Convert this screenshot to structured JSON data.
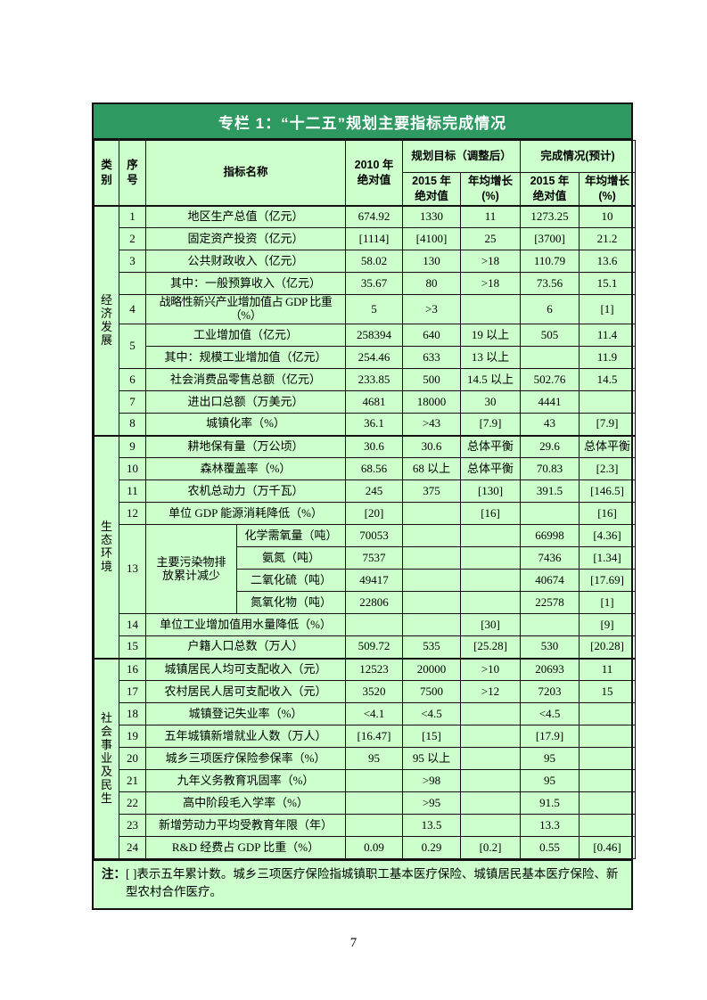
{
  "page": {
    "number": "7"
  },
  "colors": {
    "title_bar": "#2f9962",
    "body_bg": "#ccffcc",
    "border": "#111111"
  },
  "table": {
    "title": "专栏 1：“十二五”规划主要指标完成情况",
    "header": {
      "category": "类\n别",
      "index": "序\n号",
      "indicator": "指标名称",
      "base2010": "2010 年\n绝对值",
      "plan_group": "规划目标（调整后）",
      "done_group": "完成情况(预计)",
      "abs2015": "2015 年\n绝对值",
      "growth_pct": "年均增长\n(%)"
    },
    "rows": [
      {
        "cells": [
          {
            "t": "经\n济\n发\n展",
            "rs": 10,
            "c": "cat"
          },
          {
            "t": "1",
            "c": "num"
          },
          {
            "t": "地区生产总值（亿元）",
            "cs": 2,
            "c": "name"
          },
          {
            "t": "674.92"
          },
          {
            "t": "1330"
          },
          {
            "t": "11"
          },
          {
            "t": "1273.25"
          },
          {
            "t": "10"
          }
        ]
      },
      {
        "cells": [
          {
            "t": "2",
            "c": "num"
          },
          {
            "t": "固定资产投资（亿元）",
            "cs": 2,
            "c": "name"
          },
          {
            "t": "[1114]"
          },
          {
            "t": "[4100]"
          },
          {
            "t": "25"
          },
          {
            "t": "[3700]"
          },
          {
            "t": "21.2"
          }
        ]
      },
      {
        "cells": [
          {
            "t": "3",
            "c": "num"
          },
          {
            "t": "公共财政收入（亿元）",
            "cs": 2,
            "c": "name"
          },
          {
            "t": "58.02"
          },
          {
            "t": "130"
          },
          {
            "t": ">18"
          },
          {
            "t": "110.79"
          },
          {
            "t": "13.6"
          }
        ]
      },
      {
        "cells": [
          {
            "t": "",
            "c": "num"
          },
          {
            "t": "其中：一般预算收入（亿元）",
            "cs": 2,
            "c": "name"
          },
          {
            "t": "35.67"
          },
          {
            "t": "80"
          },
          {
            "t": ">18"
          },
          {
            "t": "73.56"
          },
          {
            "t": "15.1"
          }
        ]
      },
      {
        "cells": [
          {
            "t": "4",
            "c": "num"
          },
          {
            "t": "战略性新兴产业增加值占 GDP 比重（%）",
            "cs": 2,
            "c": "name sm"
          },
          {
            "t": "5"
          },
          {
            "t": ">3"
          },
          {
            "t": ""
          },
          {
            "t": "6"
          },
          {
            "t": "[1]"
          }
        ]
      },
      {
        "cells": [
          {
            "t": "5",
            "rs": 2,
            "c": "num"
          },
          {
            "t": "工业增加值（亿元）",
            "cs": 2,
            "c": "name"
          },
          {
            "t": "258394"
          },
          {
            "t": "640"
          },
          {
            "t": "19 以上"
          },
          {
            "t": "505"
          },
          {
            "t": "11.4"
          }
        ]
      },
      {
        "cells": [
          {
            "t": "其中：规模工业增加值（亿元）",
            "cs": 2,
            "c": "name"
          },
          {
            "t": "254.46"
          },
          {
            "t": "633"
          },
          {
            "t": "13 以上"
          },
          {
            "t": ""
          },
          {
            "t": "11.9"
          }
        ]
      },
      {
        "cells": [
          {
            "t": "6",
            "c": "num"
          },
          {
            "t": "社会消费品零售总额（亿元）",
            "cs": 2,
            "c": "name"
          },
          {
            "t": "233.85"
          },
          {
            "t": "500"
          },
          {
            "t": "14.5 以上"
          },
          {
            "t": "502.76"
          },
          {
            "t": "14.5"
          }
        ]
      },
      {
        "cells": [
          {
            "t": "7",
            "c": "num"
          },
          {
            "t": "进出口总额（万美元）",
            "cs": 2,
            "c": "name"
          },
          {
            "t": "4681"
          },
          {
            "t": "18000"
          },
          {
            "t": "30"
          },
          {
            "t": "4441"
          },
          {
            "t": ""
          }
        ]
      },
      {
        "cells": [
          {
            "t": "8",
            "c": "num"
          },
          {
            "t": "城镇化率（%）",
            "cs": 2,
            "c": "name"
          },
          {
            "t": "36.1"
          },
          {
            "t": ">43"
          },
          {
            "t": "[7.9]"
          },
          {
            "t": "43"
          },
          {
            "t": "[7.9]"
          }
        ]
      },
      {
        "cls": "section-start",
        "cells": [
          {
            "t": "生\n态\n环\n境",
            "rs": 10,
            "c": "cat"
          },
          {
            "t": "9",
            "c": "num"
          },
          {
            "t": "耕地保有量（万公顷）",
            "cs": 2,
            "c": "name"
          },
          {
            "t": "30.6"
          },
          {
            "t": "30.6"
          },
          {
            "t": "总体平衡"
          },
          {
            "t": "29.6"
          },
          {
            "t": "总体平衡"
          }
        ]
      },
      {
        "cells": [
          {
            "t": "10",
            "c": "num"
          },
          {
            "t": "森林覆盖率（%）",
            "cs": 2,
            "c": "name"
          },
          {
            "t": "68.56"
          },
          {
            "t": "68 以上"
          },
          {
            "t": "总体平衡"
          },
          {
            "t": "70.83"
          },
          {
            "t": "[2.3]"
          }
        ]
      },
      {
        "cells": [
          {
            "t": "11",
            "c": "num"
          },
          {
            "t": "农机总动力（万千瓦）",
            "cs": 2,
            "c": "name"
          },
          {
            "t": "245"
          },
          {
            "t": "375"
          },
          {
            "t": "[130]"
          },
          {
            "t": "391.5"
          },
          {
            "t": "[146.5]"
          }
        ]
      },
      {
        "cells": [
          {
            "t": "12",
            "c": "num"
          },
          {
            "t": "单位 GDP 能源消耗降低（%）",
            "cs": 2,
            "c": "name"
          },
          {
            "t": "[20]"
          },
          {
            "t": ""
          },
          {
            "t": "[16]"
          },
          {
            "t": ""
          },
          {
            "t": "[16]"
          }
        ]
      },
      {
        "cells": [
          {
            "t": "13",
            "rs": 4,
            "c": "num"
          },
          {
            "t": "主要污染物排\n放累计减少",
            "rs": 4,
            "c": "gname"
          },
          {
            "t": "化学需氧量（吨）",
            "c": "sname"
          },
          {
            "t": "70053"
          },
          {
            "t": ""
          },
          {
            "t": ""
          },
          {
            "t": "66998"
          },
          {
            "t": "[4.36]"
          }
        ]
      },
      {
        "cells": [
          {
            "t": "氨氮（吨）",
            "c": "sname"
          },
          {
            "t": "7537"
          },
          {
            "t": ""
          },
          {
            "t": ""
          },
          {
            "t": "7436"
          },
          {
            "t": "[1.34]"
          }
        ]
      },
      {
        "cells": [
          {
            "t": "二氧化硫（吨）",
            "c": "sname"
          },
          {
            "t": "49417"
          },
          {
            "t": ""
          },
          {
            "t": ""
          },
          {
            "t": "40674"
          },
          {
            "t": "[17.69]"
          }
        ]
      },
      {
        "cells": [
          {
            "t": "氮氧化物（吨）",
            "c": "sname"
          },
          {
            "t": "22806"
          },
          {
            "t": ""
          },
          {
            "t": ""
          },
          {
            "t": "22578"
          },
          {
            "t": "[1]"
          }
        ]
      },
      {
        "cells": [
          {
            "t": "14",
            "c": "num"
          },
          {
            "t": "单位工业增加值用水量降低（%）",
            "cs": 2,
            "c": "name"
          },
          {
            "t": ""
          },
          {
            "t": ""
          },
          {
            "t": "[30]"
          },
          {
            "t": ""
          },
          {
            "t": "[9]"
          }
        ]
      },
      {
        "cells": [
          {
            "t": "15",
            "c": "num"
          },
          {
            "t": "户籍人口总数（万人）",
            "cs": 2,
            "c": "name"
          },
          {
            "t": "509.72"
          },
          {
            "t": "535"
          },
          {
            "t": "[25.28]"
          },
          {
            "t": "530"
          },
          {
            "t": "[20.28]"
          }
        ]
      },
      {
        "cls": "section-start",
        "cells": [
          {
            "t": "社\n会\n事\n业\n及\n民\n生",
            "rs": 9,
            "c": "cat"
          },
          {
            "t": "16",
            "c": "num"
          },
          {
            "t": "城镇居民人均可支配收入（元）",
            "cs": 2,
            "c": "name"
          },
          {
            "t": "12523"
          },
          {
            "t": "20000"
          },
          {
            "t": ">10"
          },
          {
            "t": "20693"
          },
          {
            "t": "11"
          }
        ]
      },
      {
        "cells": [
          {
            "t": "17",
            "c": "num"
          },
          {
            "t": "农村居民人居可支配收入（元）",
            "cs": 2,
            "c": "name"
          },
          {
            "t": "3520"
          },
          {
            "t": "7500"
          },
          {
            "t": ">12"
          },
          {
            "t": "7203"
          },
          {
            "t": "15"
          }
        ]
      },
      {
        "cells": [
          {
            "t": "18",
            "c": "num"
          },
          {
            "t": "城镇登记失业率（%）",
            "cs": 2,
            "c": "name"
          },
          {
            "t": "<4.1"
          },
          {
            "t": "<4.5"
          },
          {
            "t": ""
          },
          {
            "t": "<4.5"
          },
          {
            "t": ""
          }
        ]
      },
      {
        "cells": [
          {
            "t": "19",
            "c": "num"
          },
          {
            "t": "五年城镇新增就业人数（万人）",
            "cs": 2,
            "c": "name"
          },
          {
            "t": "[16.47]"
          },
          {
            "t": "[15]"
          },
          {
            "t": ""
          },
          {
            "t": "[17.9]"
          },
          {
            "t": ""
          }
        ]
      },
      {
        "cells": [
          {
            "t": "20",
            "c": "num"
          },
          {
            "t": "城乡三项医疗保险参保率（%）",
            "cs": 2,
            "c": "name"
          },
          {
            "t": "95"
          },
          {
            "t": "95 以上"
          },
          {
            "t": ""
          },
          {
            "t": "95"
          },
          {
            "t": ""
          }
        ]
      },
      {
        "cells": [
          {
            "t": "21",
            "c": "num"
          },
          {
            "t": "九年义务教育巩固率（%）",
            "cs": 2,
            "c": "name"
          },
          {
            "t": ""
          },
          {
            "t": ">98"
          },
          {
            "t": ""
          },
          {
            "t": "95"
          },
          {
            "t": ""
          }
        ]
      },
      {
        "cells": [
          {
            "t": "22",
            "c": "num"
          },
          {
            "t": "高中阶段毛入学率（%）",
            "cs": 2,
            "c": "name"
          },
          {
            "t": ""
          },
          {
            "t": ">95"
          },
          {
            "t": ""
          },
          {
            "t": "91.5"
          },
          {
            "t": ""
          }
        ]
      },
      {
        "cells": [
          {
            "t": "23",
            "c": "num"
          },
          {
            "t": "新增劳动力平均受教育年限（年）",
            "cs": 2,
            "c": "name"
          },
          {
            "t": ""
          },
          {
            "t": "13.5"
          },
          {
            "t": ""
          },
          {
            "t": "13.3"
          },
          {
            "t": ""
          }
        ]
      },
      {
        "cells": [
          {
            "t": "24",
            "c": "num"
          },
          {
            "t": "R&D 经费占 GDP 比重（%）",
            "cs": 2,
            "c": "name"
          },
          {
            "t": "0.09"
          },
          {
            "t": "0.29"
          },
          {
            "t": "[0.2]"
          },
          {
            "t": "0.55"
          },
          {
            "t": "[0.46]"
          }
        ]
      }
    ],
    "note_label": "注：",
    "note_text": "[ ]表示五年累计数。城乡三项医疗保险指城镇职工基本医疗保险、城镇居民基本医疗保险、新型农村合作医疗。"
  }
}
